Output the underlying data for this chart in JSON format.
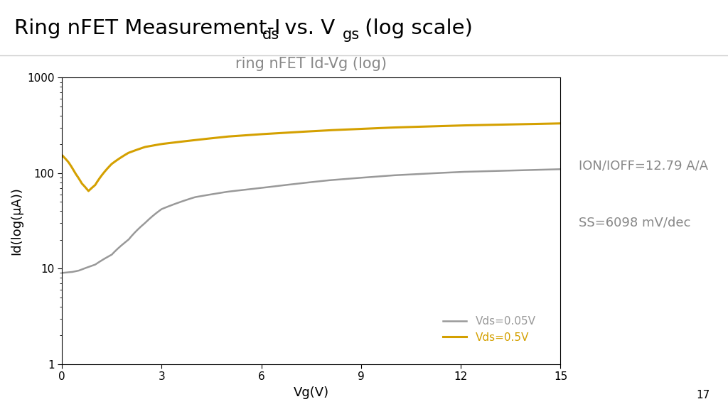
{
  "title_main_parts": [
    "Ring nFET Measurement-I",
    "ds",
    " vs. V",
    "gs",
    " (log scale)"
  ],
  "title_main_sizes": [
    22,
    16,
    22,
    16,
    22
  ],
  "title_sub": "ring nFET Id-Vg (log)",
  "xlabel": "Vg(V)",
  "ylabel": "Id(log(μA))",
  "xlim": [
    0,
    15
  ],
  "ylim_log": [
    1,
    1000
  ],
  "xticks": [
    0,
    3,
    6,
    9,
    12,
    15
  ],
  "yticks": [
    1,
    10,
    100,
    1000
  ],
  "annotation1": "ION/IOFF=12.79 A/A",
  "annotation2": "SS=6098 mV/dec",
  "legend1": "Vds=0.05V",
  "legend2": "Vds=0.5V",
  "color_gray": "#999999",
  "color_gold": "#D4A000",
  "annotation_color": "#888888",
  "page_number": "17",
  "background_color": "#ffffff",
  "divider_color": "#cccccc"
}
